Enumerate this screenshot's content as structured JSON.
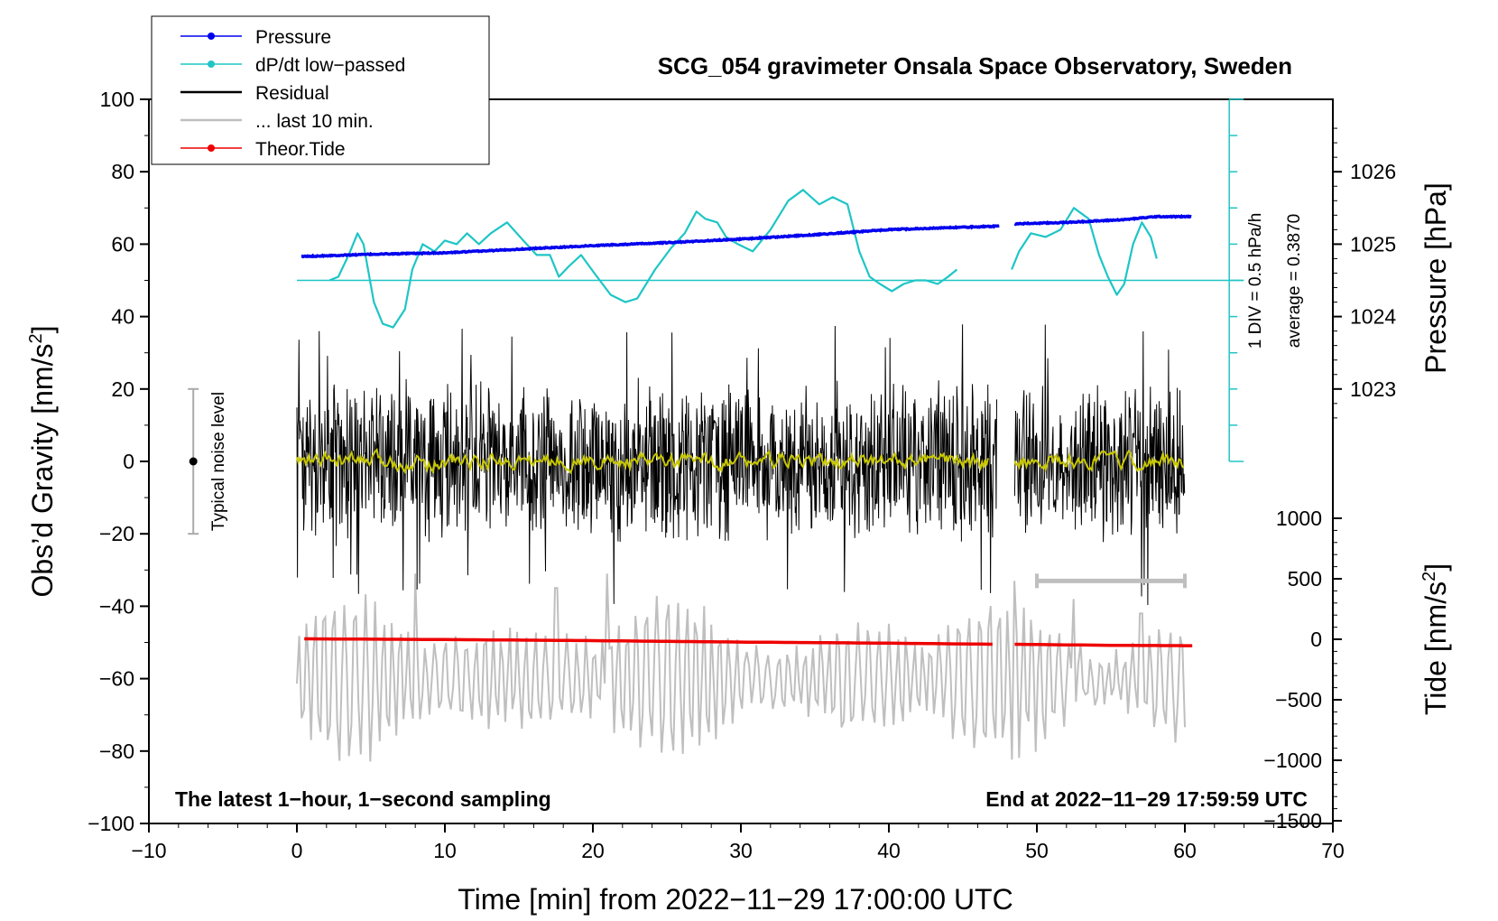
{
  "chart_data": {
    "type": "line",
    "title": "SCG_054 gravimeter Onsala Space Observatory, Sweden",
    "xlabel": "Time [min] from 2022−11−29 17:00:00 UTC",
    "ylabel_left_main": "Obs’d Gravity [nm/s",
    "ylabel_left_sup": "2",
    "ylabel_left_end": "]",
    "ylabel_right_pressure": "Pressure [hPa]",
    "ylabel_right_tide_main": "Tide [nm/s",
    "ylabel_right_tide_sup": "2",
    "ylabel_right_tide_end": "]",
    "xlim": [
      -10,
      70
    ],
    "ylim": [
      -100,
      100
    ],
    "x_ticks": [
      -10,
      0,
      10,
      20,
      30,
      40,
      50,
      60,
      70
    ],
    "x_tick_labels": [
      "−10",
      "0",
      "10",
      "20",
      "30",
      "40",
      "50",
      "60",
      "70"
    ],
    "y_ticks": [
      -100,
      -80,
      -60,
      -40,
      -20,
      0,
      20,
      40,
      60,
      80,
      100
    ],
    "y_tick_labels": [
      "−100",
      "−80",
      "−60",
      "−40",
      "−20",
      "0",
      "20",
      "40",
      "60",
      "80",
      "100"
    ],
    "pressure_axis": {
      "ticks": [
        1023,
        1024,
        1025,
        1026
      ],
      "tick_labels": [
        "1023",
        "1024",
        "1025",
        "1026"
      ],
      "at_gravity_value": [
        20,
        40,
        60,
        80
      ]
    },
    "tide_axis": {
      "ticks": [
        -1500,
        -1000,
        -500,
        0,
        500,
        1000
      ],
      "tick_labels": [
        "−1500",
        "−1000",
        "−500",
        "0",
        "500",
        "1000"
      ]
    },
    "legend": [
      {
        "label": "Pressure",
        "color": "#0000ee",
        "marker": true
      },
      {
        "label": "dP/dt low−passed",
        "color": "#1fc5c5",
        "marker": true
      },
      {
        "label": "Residual",
        "color": "#000000",
        "marker": false
      },
      {
        "label": "... last 10 min.",
        "color": "#bfbfbf",
        "marker": false
      },
      {
        "label": "Theor.Tide",
        "color": "#ee0000",
        "marker": true
      }
    ],
    "annotations": {
      "bottom_left": "The latest 1−hour, 1−second sampling",
      "bottom_right": "End at 2022−11−29 17:59:59 UTC",
      "noise_label": "Typical noise level",
      "dpdt_scale": "1 DIV = 0.5 hPa/h",
      "dpdt_average": "average = 0.3870"
    },
    "noise_bar": {
      "x": -7,
      "center": 0,
      "low": -20,
      "high": 20
    },
    "last10_bracket": {
      "x_start": 50,
      "x_end": 60,
      "value": -33
    },
    "dpdt_baseline_value": 50,
    "series": [
      {
        "name": "Pressure",
        "color": "#0000ee",
        "units": "hPa",
        "x": [
          0.3,
          5,
          10,
          15,
          20,
          25,
          30,
          35,
          40,
          47.5,
          48.5,
          52,
          56,
          58,
          60.5
        ],
        "values": [
          1024.83,
          1024.86,
          1024.88,
          1024.93,
          1024.98,
          1025.02,
          1025.07,
          1025.13,
          1025.2,
          1025.25,
          1025.28,
          1025.3,
          1025.34,
          1025.38,
          1025.38
        ]
      },
      {
        "name": "dP/dt low-passed",
        "color": "#1fc5c5",
        "units": "gravity-axis units",
        "x": [
          2.2,
          2.8,
          3.5,
          4.1,
          4.5,
          5.2,
          5.8,
          6.5,
          7.3,
          7.8,
          8.5,
          9.3,
          10,
          10.8,
          11.5,
          12.3,
          13.1,
          14.2,
          15.3,
          16.2,
          17.1,
          17.7,
          18.4,
          19.2,
          20.1,
          21.2,
          22.2,
          23,
          24.2,
          25.3,
          26.2,
          27,
          27.6,
          28.4,
          29,
          29.8,
          30.8,
          32,
          33.2,
          34.2,
          35.3,
          36.2,
          37.2,
          38,
          38.7,
          39.4,
          40.2,
          41,
          41.8,
          42.5,
          43.3,
          44,
          44.6,
          48.3,
          48.8,
          49.6,
          50.6,
          51.6,
          52.5,
          53.5,
          54.2,
          54.8,
          55.4,
          55.9,
          56.5,
          57.1,
          57.7,
          58.1
        ],
        "values": [
          50,
          51,
          57,
          63,
          60,
          44,
          38,
          37,
          42,
          53,
          60,
          58,
          61,
          60,
          63,
          60,
          63,
          66,
          61,
          57,
          57,
          51,
          54,
          57,
          52,
          46,
          44,
          45,
          53,
          59,
          63,
          69,
          67,
          66,
          62,
          60,
          58,
          64,
          72,
          75,
          71,
          73,
          71,
          58,
          51,
          49,
          47,
          49,
          50,
          50,
          49,
          51,
          53,
          53,
          58,
          63,
          62,
          64,
          70,
          67,
          57,
          51,
          46,
          49,
          60,
          66,
          62,
          56
        ]
      },
      {
        "name": "Residual",
        "color": "#000000",
        "units": "nm/s^2",
        "note": "1-second noise, approx ±20 nm/s^2 with peaks near ±35; data gap between ~47.3 and ~48.5 min",
        "x_range": [
          0,
          60
        ],
        "amplitude": 20,
        "peak_min": -40,
        "peak_max": 38
      },
      {
        "name": "Residual smoothed",
        "color": "#c8c800",
        "units": "nm/s^2",
        "x_range": [
          0,
          60
        ],
        "values_range": [
          -4,
          4
        ]
      },
      {
        "name": "... last 10 min.",
        "color": "#bfbfbf",
        "units": "nm/s^2 (shifted)",
        "note": "last-10-minute residual repeated along the time axis, centered near −60",
        "x_range": [
          0,
          60
        ],
        "center": -60,
        "min": -89,
        "max": -31
      },
      {
        "name": "Theor.Tide",
        "color": "#ee0000",
        "units": "nm/s^2",
        "x": [
          0.5,
          10,
          20,
          30,
          40,
          47.2,
          48.5,
          55,
          60.5
        ],
        "values": [
          -49,
          -49.2,
          -49.5,
          -49.9,
          -50.2,
          -50.5,
          -50.5,
          -50.8,
          -50.9
        ]
      }
    ]
  }
}
